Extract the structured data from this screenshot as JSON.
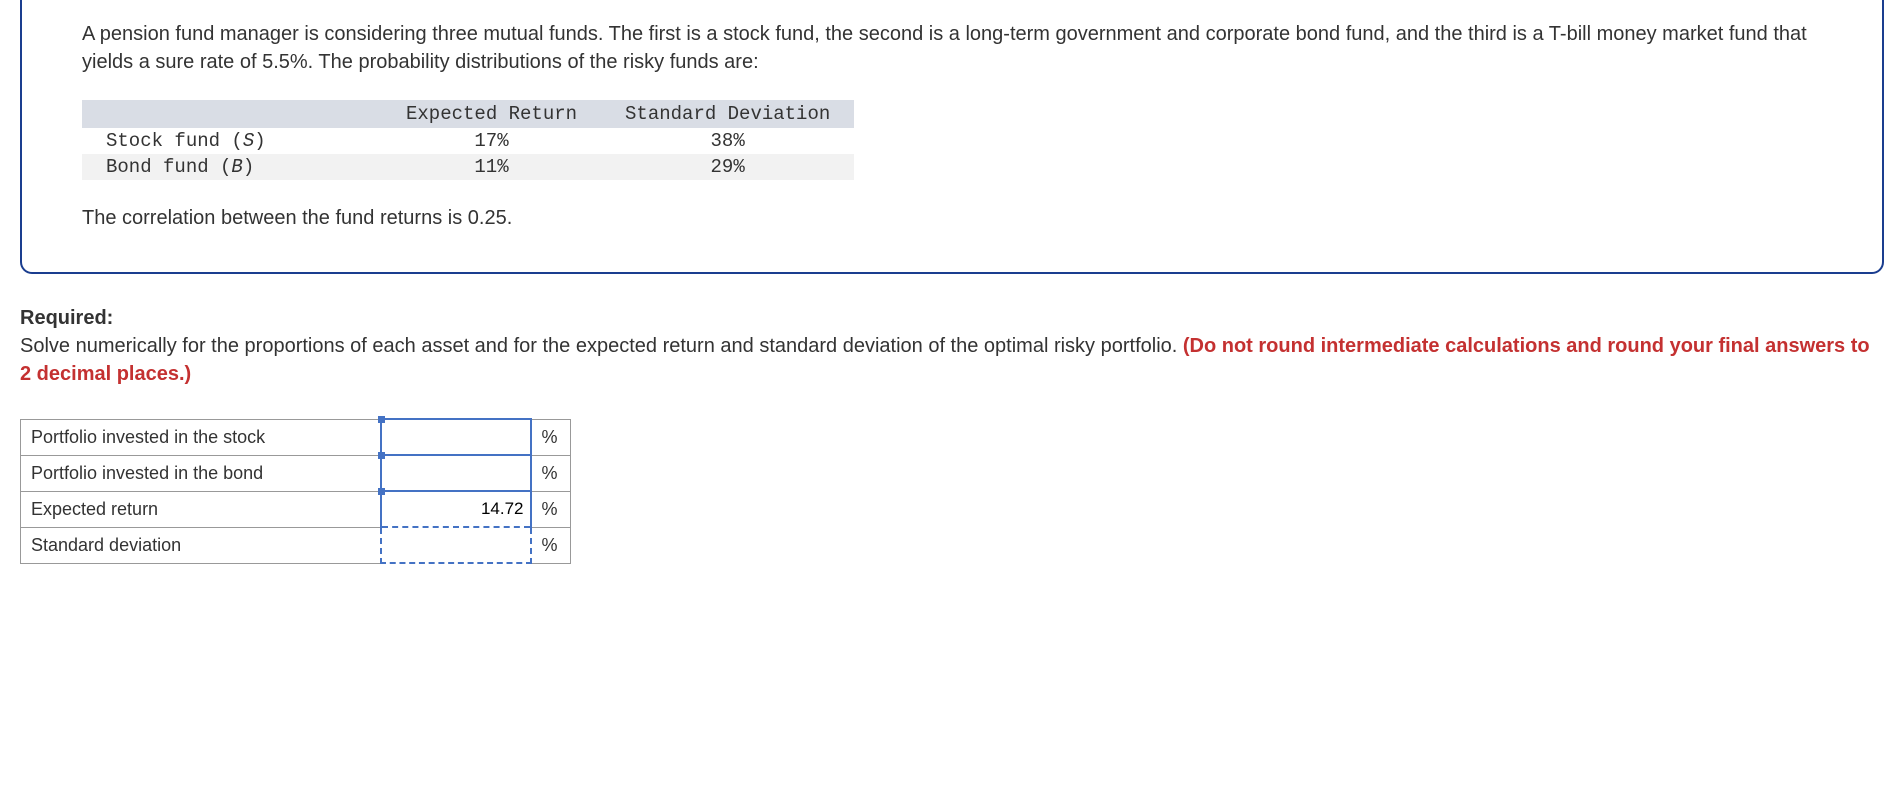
{
  "question": {
    "intro_text": "A pension fund manager is considering three mutual funds. The first is a stock fund, the second is a long-term government and corporate bond fund, and the third is a T-bill money market fund that yields a sure rate of 5.5%. The probability distributions of the risky funds are:",
    "table": {
      "headers": [
        "",
        "Expected Return",
        "Standard Deviation"
      ],
      "rows": [
        {
          "label": "Stock fund (",
          "italic": "S",
          "label_end": ")",
          "expected_return": "17%",
          "std_dev": "38%"
        },
        {
          "label": "Bond fund (",
          "italic": "B",
          "label_end": ")",
          "expected_return": "11%",
          "std_dev": "29%"
        }
      ]
    },
    "correlation_text": "The correlation between the fund returns is 0.25."
  },
  "required": {
    "label": "Required:",
    "text": "Solve numerically for the proportions of each asset and for the expected return and standard deviation of the optimal risky portfolio. ",
    "hint": "(Do not round intermediate calculations and round your final answers to 2 decimal places.)"
  },
  "answer_table": {
    "rows": [
      {
        "label": "Portfolio invested in the stock",
        "value": "",
        "unit": "%",
        "active": true
      },
      {
        "label": "Portfolio invested in the bond",
        "value": "",
        "unit": "%",
        "active": true
      },
      {
        "label": "Expected return",
        "value": "14.72",
        "unit": "%",
        "active": true,
        "dashed": true
      },
      {
        "label": "Standard deviation",
        "value": "",
        "unit": "%",
        "dashed_full": true
      }
    ]
  }
}
